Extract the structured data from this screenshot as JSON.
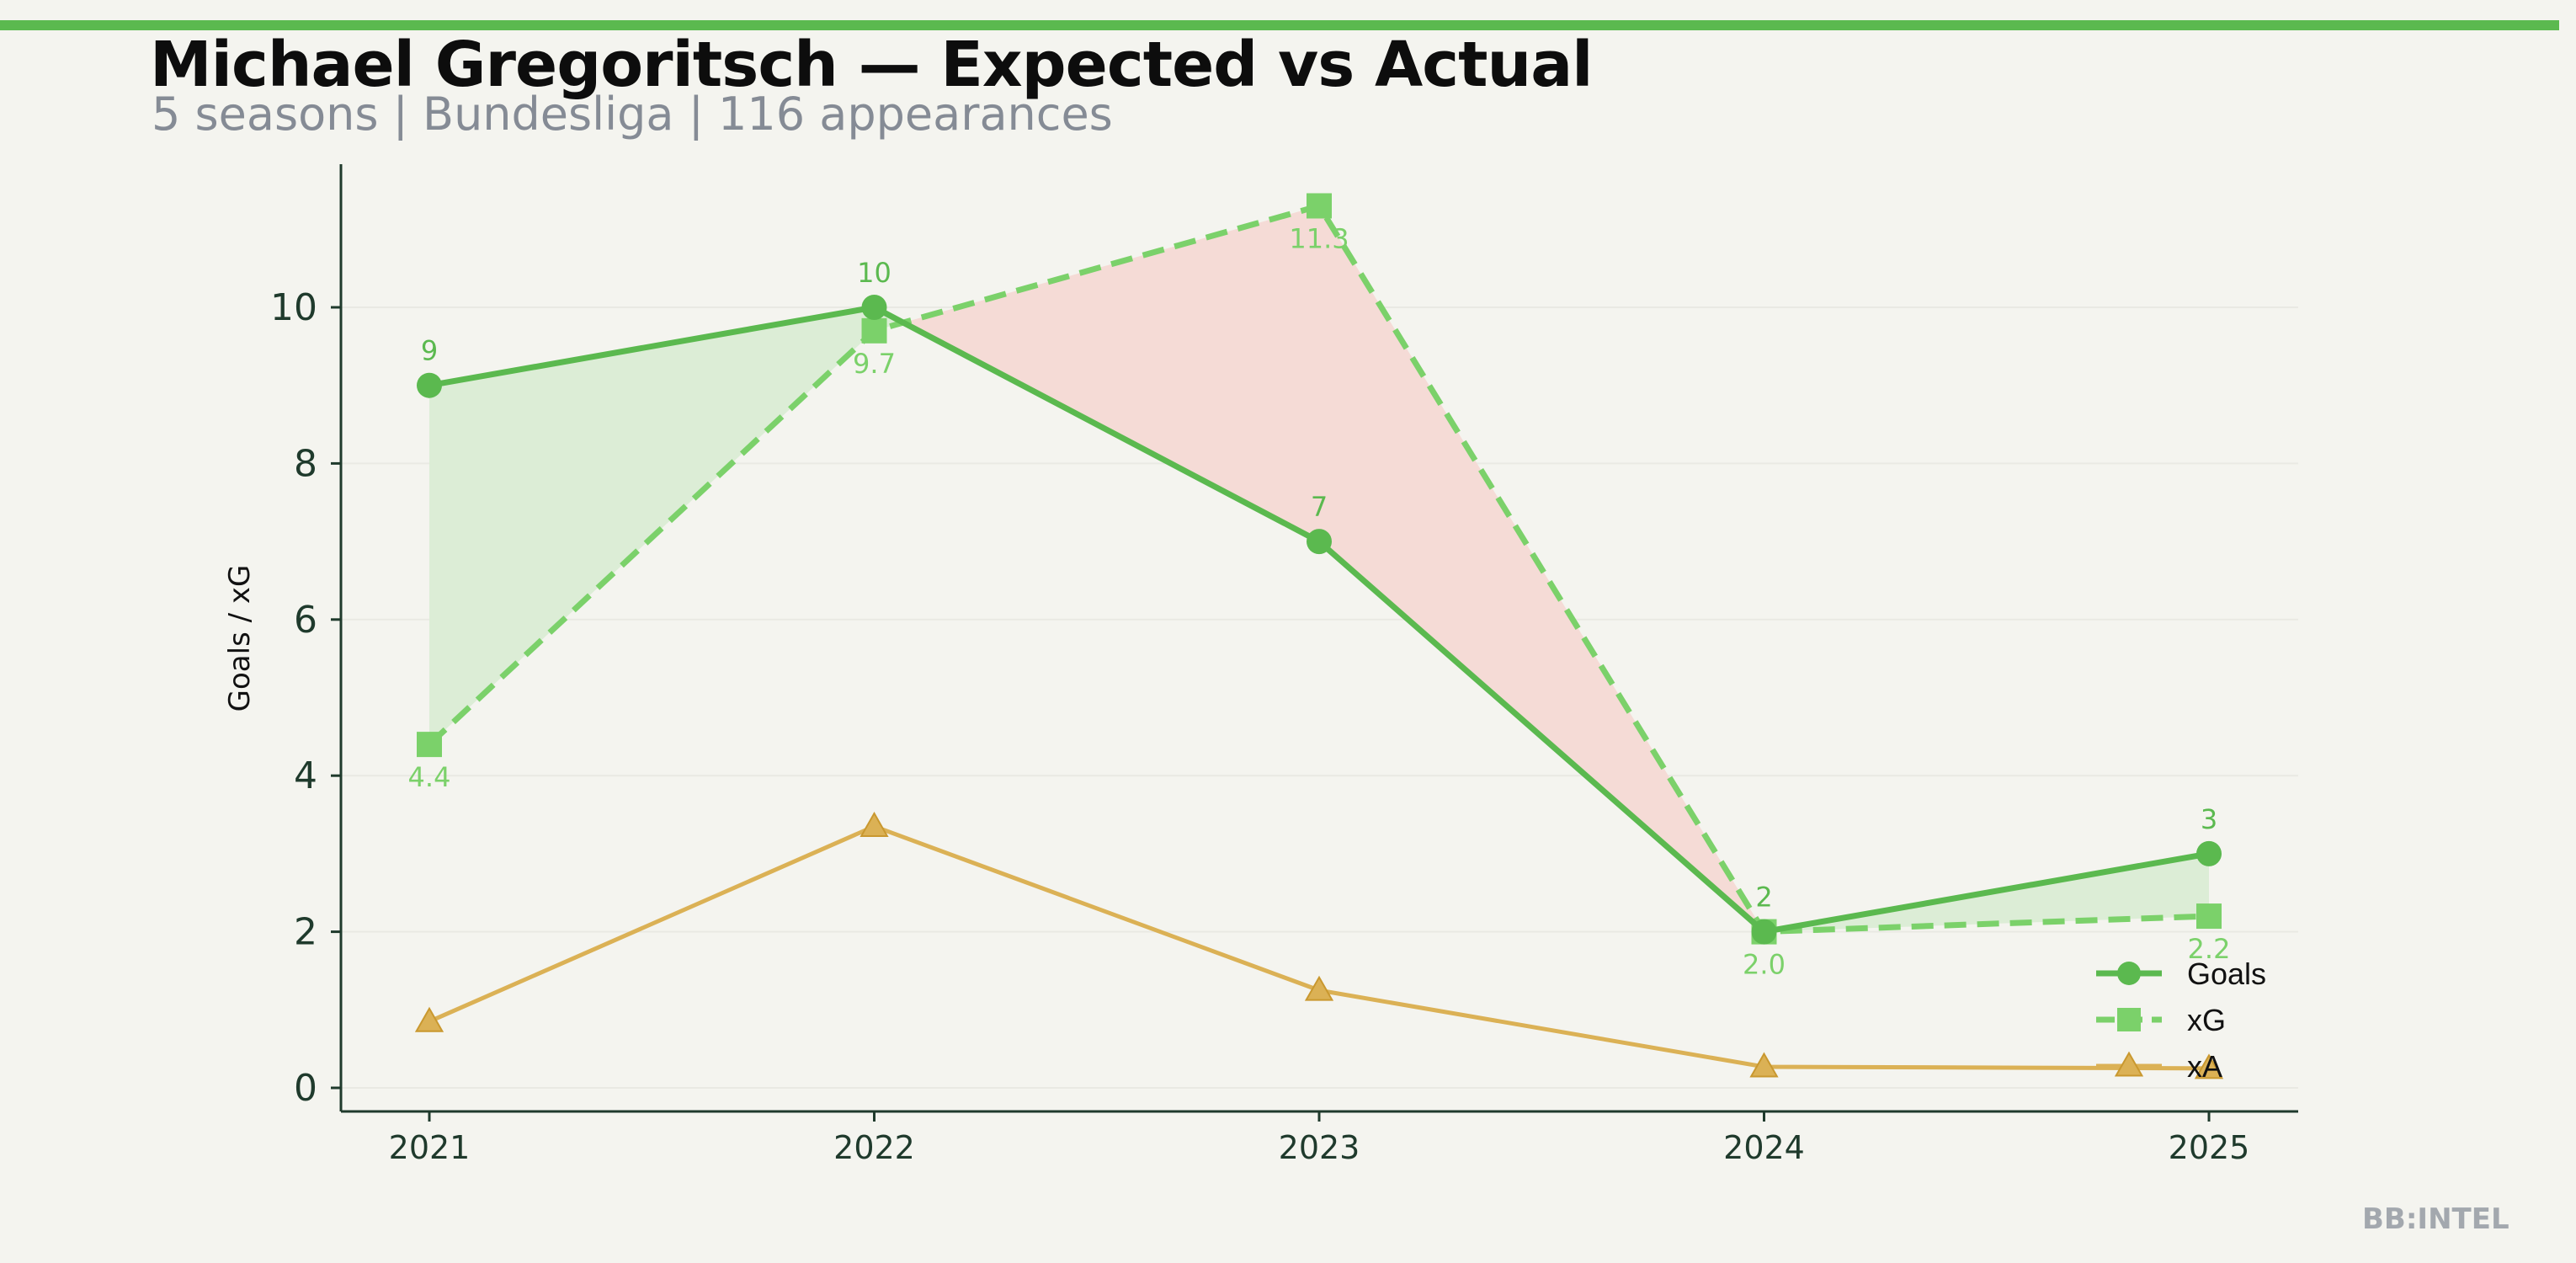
{
  "header": {
    "title": "Michael Gregoritsch — Expected vs Actual",
    "subtitle": "5 seasons | Bundesliga | 116 appearances"
  },
  "chart_data": {
    "type": "line",
    "x": [
      "2021",
      "2022",
      "2023",
      "2024",
      "2025"
    ],
    "ylabel": "Goals / xG",
    "xlabel": "",
    "ylim": [
      -0.3,
      11.8
    ],
    "yticks": [
      0,
      2,
      4,
      6,
      8,
      10
    ],
    "grid": "horizontal, faint",
    "legend_position": "lower-right",
    "series": [
      {
        "name": "Goals",
        "values": [
          9,
          10,
          7,
          2,
          3
        ],
        "labels": [
          "9",
          "10",
          "7",
          "2",
          "3"
        ],
        "color": "#5bb94f",
        "style": "solid",
        "marker": "circle"
      },
      {
        "name": "xG",
        "values": [
          4.4,
          9.7,
          11.3,
          2.0,
          2.2
        ],
        "labels": [
          "4.4",
          "9.7",
          "11.3",
          "2.0",
          "2.2"
        ],
        "color": "#7bd16a",
        "style": "dashed",
        "marker": "square"
      },
      {
        "name": "xA",
        "values": [
          0.85,
          3.35,
          1.25,
          0.27,
          0.25
        ],
        "color": "#dbb155",
        "style": "solid",
        "marker": "triangle"
      }
    ],
    "fill_over": "#dcedd6",
    "fill_under": "#f5dbd6"
  },
  "watermark": "BB:INTEL"
}
